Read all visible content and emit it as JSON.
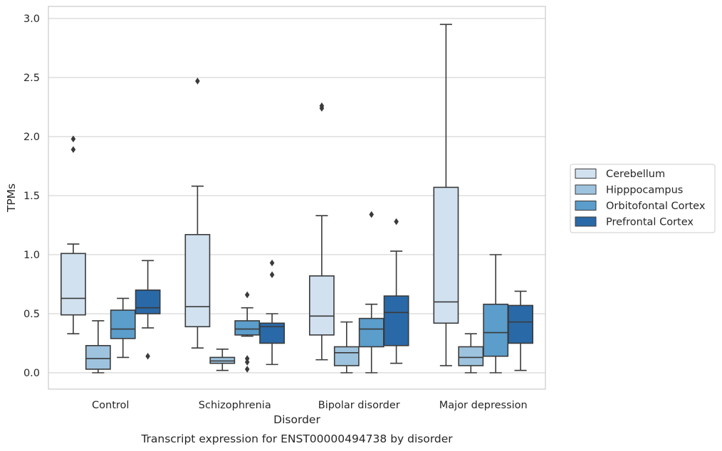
{
  "chart_data": {
    "type": "boxplot",
    "caption": "Transcript expression for ENST00000494738 by disorder",
    "xlabel": "Disorder",
    "ylabel": "TPMs",
    "ylim": [
      -0.14,
      3.1
    ],
    "yticks": [
      0.0,
      0.5,
      1.0,
      1.5,
      2.0,
      2.5,
      3.0
    ],
    "ytick_labels": [
      "0.0",
      "0.5",
      "1.0",
      "1.5",
      "2.0",
      "2.5",
      "3.0"
    ],
    "grid": "horizontal",
    "legend_position": "right",
    "categories": [
      "Control",
      "Schizophrenia",
      "Bipolar disorder",
      "Major depression"
    ],
    "series": [
      {
        "name": "Cerebellum",
        "color": "#d1e1f0",
        "boxes": [
          {
            "whislo": 0.33,
            "q1": 0.49,
            "med": 0.63,
            "q3": 1.01,
            "whishi": 1.09,
            "fliers": [
              1.89,
              1.98
            ]
          },
          {
            "whislo": 0.21,
            "q1": 0.39,
            "med": 0.56,
            "q3": 1.17,
            "whishi": 1.58,
            "fliers": [
              2.47
            ]
          },
          {
            "whislo": 0.11,
            "q1": 0.32,
            "med": 0.48,
            "q3": 0.82,
            "whishi": 1.33,
            "fliers": [
              2.24,
              2.26
            ]
          },
          {
            "whislo": 0.06,
            "q1": 0.42,
            "med": 0.6,
            "q3": 1.57,
            "whishi": 2.95,
            "fliers": []
          }
        ]
      },
      {
        "name": "Hipppocampus",
        "color": "#9ec3de",
        "boxes": [
          {
            "whislo": 0.0,
            "q1": 0.03,
            "med": 0.12,
            "q3": 0.23,
            "whishi": 0.44,
            "fliers": []
          },
          {
            "whislo": 0.02,
            "q1": 0.08,
            "med": 0.1,
            "q3": 0.13,
            "whishi": 0.2,
            "fliers": []
          },
          {
            "whislo": 0.0,
            "q1": 0.06,
            "med": 0.17,
            "q3": 0.22,
            "whishi": 0.43,
            "fliers": []
          },
          {
            "whislo": 0.0,
            "q1": 0.06,
            "med": 0.13,
            "q3": 0.22,
            "whishi": 0.33,
            "fliers": []
          }
        ]
      },
      {
        "name": "Orbitofontal Cortex",
        "color": "#5b9dcb",
        "boxes": [
          {
            "whislo": 0.13,
            "q1": 0.29,
            "med": 0.37,
            "q3": 0.53,
            "whishi": 0.63,
            "fliers": []
          },
          {
            "whislo": 0.31,
            "q1": 0.32,
            "med": 0.37,
            "q3": 0.44,
            "whishi": 0.55,
            "fliers": [
              0.03,
              0.09,
              0.12,
              0.66
            ]
          },
          {
            "whislo": 0.0,
            "q1": 0.22,
            "med": 0.37,
            "q3": 0.46,
            "whishi": 0.58,
            "fliers": [
              1.34
            ]
          },
          {
            "whislo": 0.0,
            "q1": 0.14,
            "med": 0.34,
            "q3": 0.58,
            "whishi": 1.0,
            "fliers": []
          }
        ]
      },
      {
        "name": "Prefrontal Cortex",
        "color": "#2a69a7",
        "boxes": [
          {
            "whislo": 0.38,
            "q1": 0.5,
            "med": 0.55,
            "q3": 0.7,
            "whishi": 0.95,
            "fliers": [
              0.14
            ]
          },
          {
            "whislo": 0.07,
            "q1": 0.25,
            "med": 0.39,
            "q3": 0.42,
            "whishi": 0.5,
            "fliers": [
              0.83,
              0.93
            ]
          },
          {
            "whislo": 0.08,
            "q1": 0.23,
            "med": 0.51,
            "q3": 0.65,
            "whishi": 1.03,
            "fliers": [
              1.28
            ]
          },
          {
            "whislo": 0.02,
            "q1": 0.25,
            "med": 0.43,
            "q3": 0.57,
            "whishi": 0.69,
            "fliers": []
          }
        ]
      }
    ]
  }
}
